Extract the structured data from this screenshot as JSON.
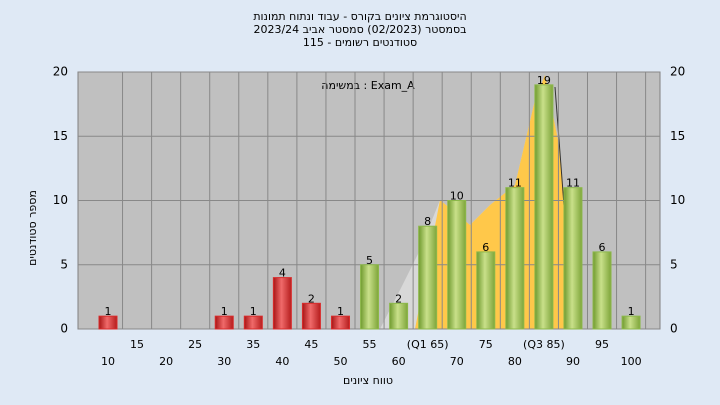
{
  "chart_data": {
    "type": "bar",
    "title": [
      "היסטוגרמת ציונים בקורס - עבוד ונתוח תמונות",
      "בסמסטר  (02/2023)  סמסטר אביב 2023/24",
      "סטודנטים רשומים - 115"
    ],
    "annotation": "במשימה : Exam_A",
    "x_label": "טווח ציונים",
    "y_label": "מספר סטודנטים",
    "categories": [
      "10",
      "15",
      "20",
      "25",
      "30",
      "35",
      "40",
      "45",
      "50",
      "55",
      "60",
      "(Q1 65)",
      "70",
      "75",
      "80",
      "(Q3 85)",
      "90",
      "95",
      "100"
    ],
    "values": [
      1,
      0,
      0,
      0,
      1,
      1,
      4,
      2,
      1,
      5,
      2,
      8,
      10,
      6,
      11,
      19,
      11,
      6,
      1
    ],
    "colors": [
      "#d92b2b",
      "#d92b2b",
      "#d92b2b",
      "#d92b2b",
      "#d92b2b",
      "#d92b2b",
      "#d92b2b",
      "#d92b2b",
      "#d92b2b",
      "#8cb84a",
      "#8cb84a",
      "#8cb84a",
      "#8cb84a",
      "#8cb84a",
      "#8cb84a",
      "#8cb84a",
      "#8cb84a",
      "#8cb84a",
      "#8cb84a"
    ],
    "ylim": [
      0,
      20
    ],
    "yticks": [
      0,
      5,
      10,
      15,
      20
    ],
    "grid": true
  }
}
